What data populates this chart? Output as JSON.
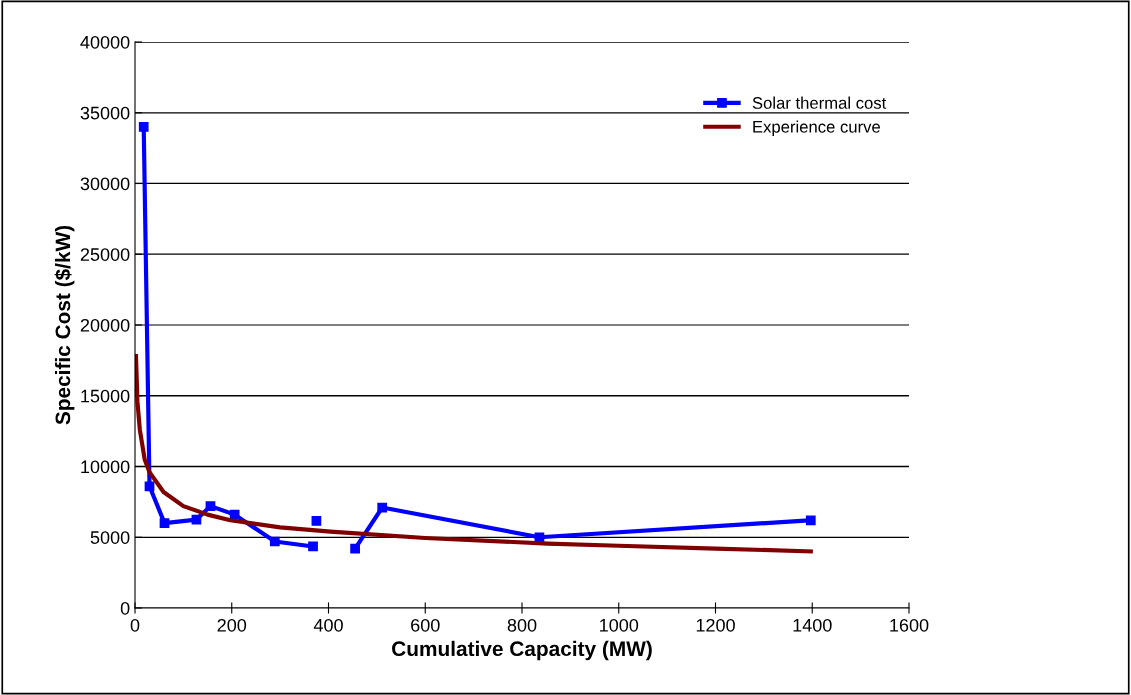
{
  "chart_data": {
    "type": "line",
    "xlabel": "Cumulative Capacity (MW)",
    "ylabel": "Specific Cost ($/kW)",
    "xlim": [
      0,
      1600
    ],
    "xticks": [
      0,
      200,
      400,
      600,
      800,
      1000,
      1200,
      1400,
      1600
    ],
    "ylim": [
      0,
      40000
    ],
    "yticks": [
      0,
      5000,
      10000,
      15000,
      20000,
      25000,
      30000,
      35000,
      40000
    ],
    "grid": "y",
    "legend": "top right",
    "series": [
      {
        "name": "Solar thermal cost",
        "color": "#0000ff",
        "marker": "square",
        "x": [
          18,
          30,
          61,
          127,
          156,
          206,
          289,
          368,
          369,
          375,
          380,
          455,
          511,
          836,
          1397
        ],
        "values": [
          34000,
          8600,
          6000,
          6250,
          7200,
          6600,
          4700,
          4350,
          null,
          6150,
          null,
          4200,
          7100,
          5000,
          6200
        ]
      },
      {
        "name": "Experience curve",
        "color": "#800000",
        "marker": "none",
        "x": [
          2,
          5,
          10,
          20,
          30,
          59,
          100,
          150,
          197,
          300,
          404,
          600,
          853,
          1000,
          1200,
          1397
        ],
        "values": [
          17800,
          14600,
          12600,
          10500,
          9600,
          8200,
          7200,
          6600,
          6200,
          5700,
          5400,
          4950,
          4550,
          4400,
          4200,
          4000
        ]
      }
    ]
  }
}
